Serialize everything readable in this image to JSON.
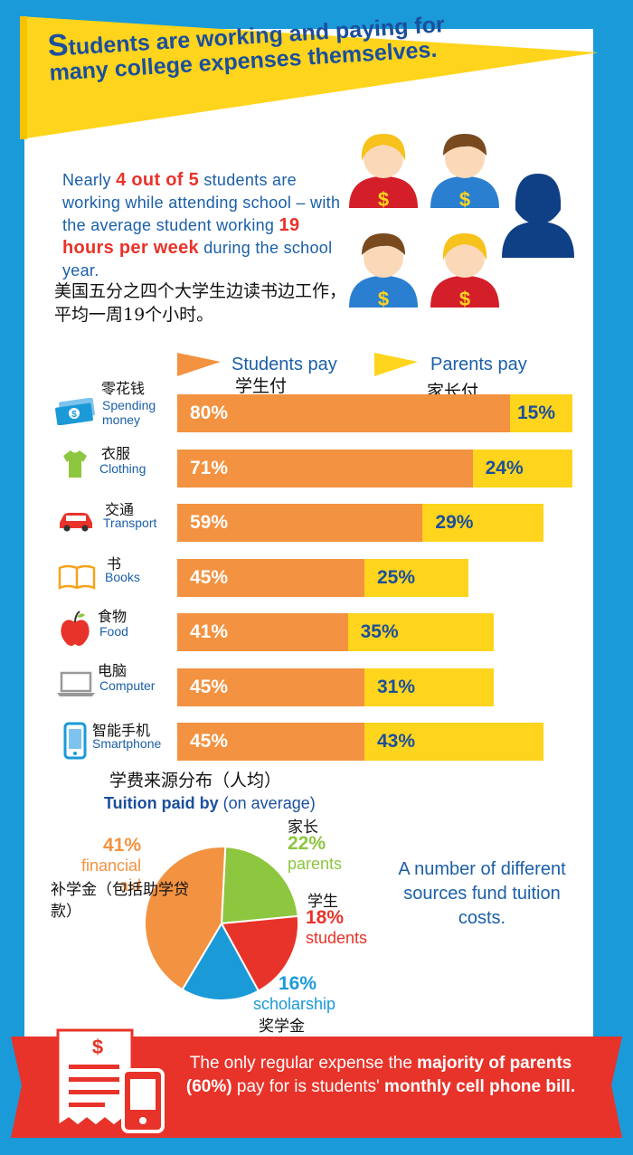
{
  "banner": {
    "cap": "S",
    "rest": "tudents are working and paying for many college expenses themselves."
  },
  "intro": {
    "p1": "Nearly ",
    "hl1": "4 out of 5",
    "p2": " students are working while attending school – with the average student working ",
    "hl2": "19 hours per week",
    "p3": " during the school year.",
    "cn": "美国五分之四个大学生边读书边工作，平均一周19个小时。"
  },
  "legend": {
    "students_en": "Students pay",
    "students_cn": "学生付",
    "parents_en": "Parents pay",
    "parents_cn": "家长付"
  },
  "colors": {
    "students": "#f39240",
    "parents": "#ffd41c",
    "red": "#e8332a",
    "blue": "#1b9ad8",
    "green": "#8dc63f",
    "text_blue": "#1b5fa8"
  },
  "chart_data": [
    {
      "type": "bar",
      "title": "",
      "categories": [
        "Spending money",
        "Clothing",
        "Transport",
        "Books",
        "Food",
        "Computer",
        "Smartphone"
      ],
      "categories_cn": [
        "零花钱",
        "衣服",
        "交通",
        "书",
        "食物",
        "电脑",
        "智能手机"
      ],
      "icons": [
        "money-icon",
        "shirt-icon",
        "car-icon",
        "book-icon",
        "apple-icon",
        "laptop-icon",
        "smartphone-icon"
      ],
      "series": [
        {
          "name": "Students pay",
          "values": [
            80,
            71,
            59,
            45,
            41,
            45,
            45
          ]
        },
        {
          "name": "Parents pay",
          "values": [
            15,
            24,
            29,
            25,
            35,
            31,
            43
          ]
        }
      ],
      "stacked": true,
      "unit": "%"
    },
    {
      "type": "pie",
      "title": "Tuition paid by",
      "title_suffix": " (on average)",
      "title_cn": "学费来源分布（人均）",
      "slices": [
        {
          "label": "parents",
          "label_cn": "家长",
          "value": 22,
          "color": "#8dc63f"
        },
        {
          "label": "students",
          "label_cn": "学生",
          "value": 18,
          "color": "#e8332a"
        },
        {
          "label": "scholarship",
          "label_cn": "奖学金",
          "value": 16,
          "color": "#1b9ad8"
        },
        {
          "label": "financial aid",
          "label_cn": "补学金（包括助学贷款）",
          "value": 41,
          "color": "#f39240"
        }
      ]
    }
  ],
  "sources_note": "A number of different sources fund tuition costs.",
  "footer": {
    "t1": "The only regular expense the ",
    "b1": "majority of parents (60%)",
    "t2": " pay for is students' ",
    "b2": "monthly cell phone bill."
  },
  "icons": {
    "dollar": "$"
  }
}
